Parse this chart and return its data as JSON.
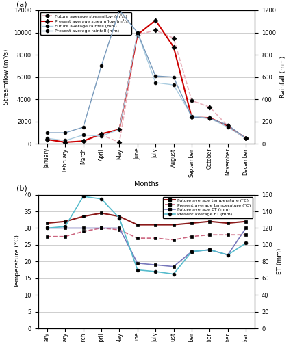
{
  "months": [
    "January",
    "February",
    "March",
    "April",
    "May",
    "June",
    "July",
    "August",
    "September",
    "October",
    "November",
    "December"
  ],
  "future_streamflow": [
    400,
    150,
    250,
    800,
    150,
    9800,
    10200,
    9500,
    3900,
    3300,
    1600,
    500
  ],
  "present_streamflow": [
    400,
    150,
    250,
    900,
    1300,
    9800,
    11100,
    8700,
    2400,
    2350,
    1600,
    500
  ],
  "future_rainfall": [
    50,
    30,
    80,
    70,
    130,
    1000,
    550,
    530,
    250,
    230,
    150,
    50
  ],
  "present_rainfall": [
    100,
    100,
    150,
    700,
    1200,
    1000,
    610,
    600,
    240,
    230,
    170,
    50
  ],
  "future_temp": [
    31.5,
    32.0,
    33.5,
    34.5,
    33.5,
    31.0,
    31.0,
    31.0,
    31.5,
    32.0,
    31.5,
    32.0
  ],
  "present_temp": [
    27.5,
    27.5,
    29.0,
    30.0,
    29.5,
    27.0,
    27.0,
    26.5,
    27.5,
    28.0,
    28.0,
    28.0
  ],
  "future_ET": [
    120,
    120,
    120,
    120,
    120,
    78,
    76,
    74,
    92,
    94,
    88,
    120
  ],
  "present_ET": [
    120,
    122,
    158,
    155,
    132,
    70,
    68,
    65,
    92,
    94,
    88,
    102
  ],
  "panel_a_ylabel_left": "Streamflow (m³/s)",
  "panel_a_ylabel_right": "Rainfall (mm)",
  "panel_b_ylabel_left": "Temperature (°C)",
  "panel_b_ylabel_right": "ET (mm)",
  "xlabel": "Months",
  "legend_a": [
    "Future average streamflow (m³/s)",
    "Present average streamflow (m³/s)",
    "Future average rainfall (mm)",
    "Present average rainfall (mm)"
  ],
  "legend_b": [
    "Future average temperature (°C)",
    "Present average temperature (°C)",
    "Future average ET (mm)",
    "Present average ET (mm)"
  ],
  "future_streamflow_color": "#e8b0bb",
  "present_streamflow_color": "#cc0000",
  "future_rainfall_color": "#aacce0",
  "present_rainfall_color": "#7799bb",
  "future_temp_color": "#8b1a1a",
  "present_temp_color": "#cc6680",
  "future_ET_color": "#7777bb",
  "present_ET_color": "#55bbcc",
  "streamflow_ylim": [
    0,
    12000
  ],
  "rainfall_ylim": [
    0,
    1200
  ],
  "temp_ylim": [
    0,
    40
  ],
  "ET_ylim": [
    0,
    160
  ]
}
